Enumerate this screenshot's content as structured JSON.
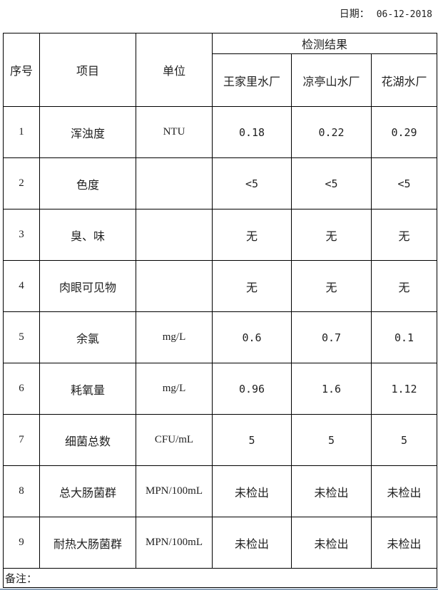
{
  "header": {
    "date_label": "日期：",
    "date_value": "06-12-2018"
  },
  "table": {
    "col_index": "序号",
    "col_item": "项目",
    "col_unit": "单位",
    "group_header": "检测结果",
    "plants": [
      "王家里水厂",
      "凉亭山水厂",
      "花湖水厂"
    ],
    "rows": [
      {
        "index": "1",
        "item": "浑浊度",
        "unit": "NTU",
        "values": [
          "0.18",
          "0.22",
          "0.29"
        ]
      },
      {
        "index": "2",
        "item": "色度",
        "unit": "",
        "values": [
          "<5",
          "<5",
          "<5"
        ]
      },
      {
        "index": "3",
        "item": "臭、味",
        "unit": "",
        "values": [
          "无",
          "无",
          "无"
        ]
      },
      {
        "index": "4",
        "item": "肉眼可见物",
        "unit": "",
        "values": [
          "无",
          "无",
          "无"
        ]
      },
      {
        "index": "5",
        "item": "余氯",
        "unit": "mg/L",
        "values": [
          "0.6",
          "0.7",
          "0.1"
        ]
      },
      {
        "index": "6",
        "item": "耗氧量",
        "unit": "mg/L",
        "values": [
          "0.96",
          "1.6",
          "1.12"
        ]
      },
      {
        "index": "7",
        "item": "细菌总数",
        "unit": "CFU/mL",
        "values": [
          "5",
          "5",
          "5"
        ]
      },
      {
        "index": "8",
        "item": "总大肠菌群",
        "unit": "MPN/100mL",
        "values": [
          "未检出",
          "未检出",
          "未检出"
        ]
      },
      {
        "index": "9",
        "item": "耐热大肠菌群",
        "unit": "MPN/100mL",
        "values": [
          "未检出",
          "未检出",
          "未检出"
        ]
      }
    ],
    "remark_label": "备注："
  }
}
